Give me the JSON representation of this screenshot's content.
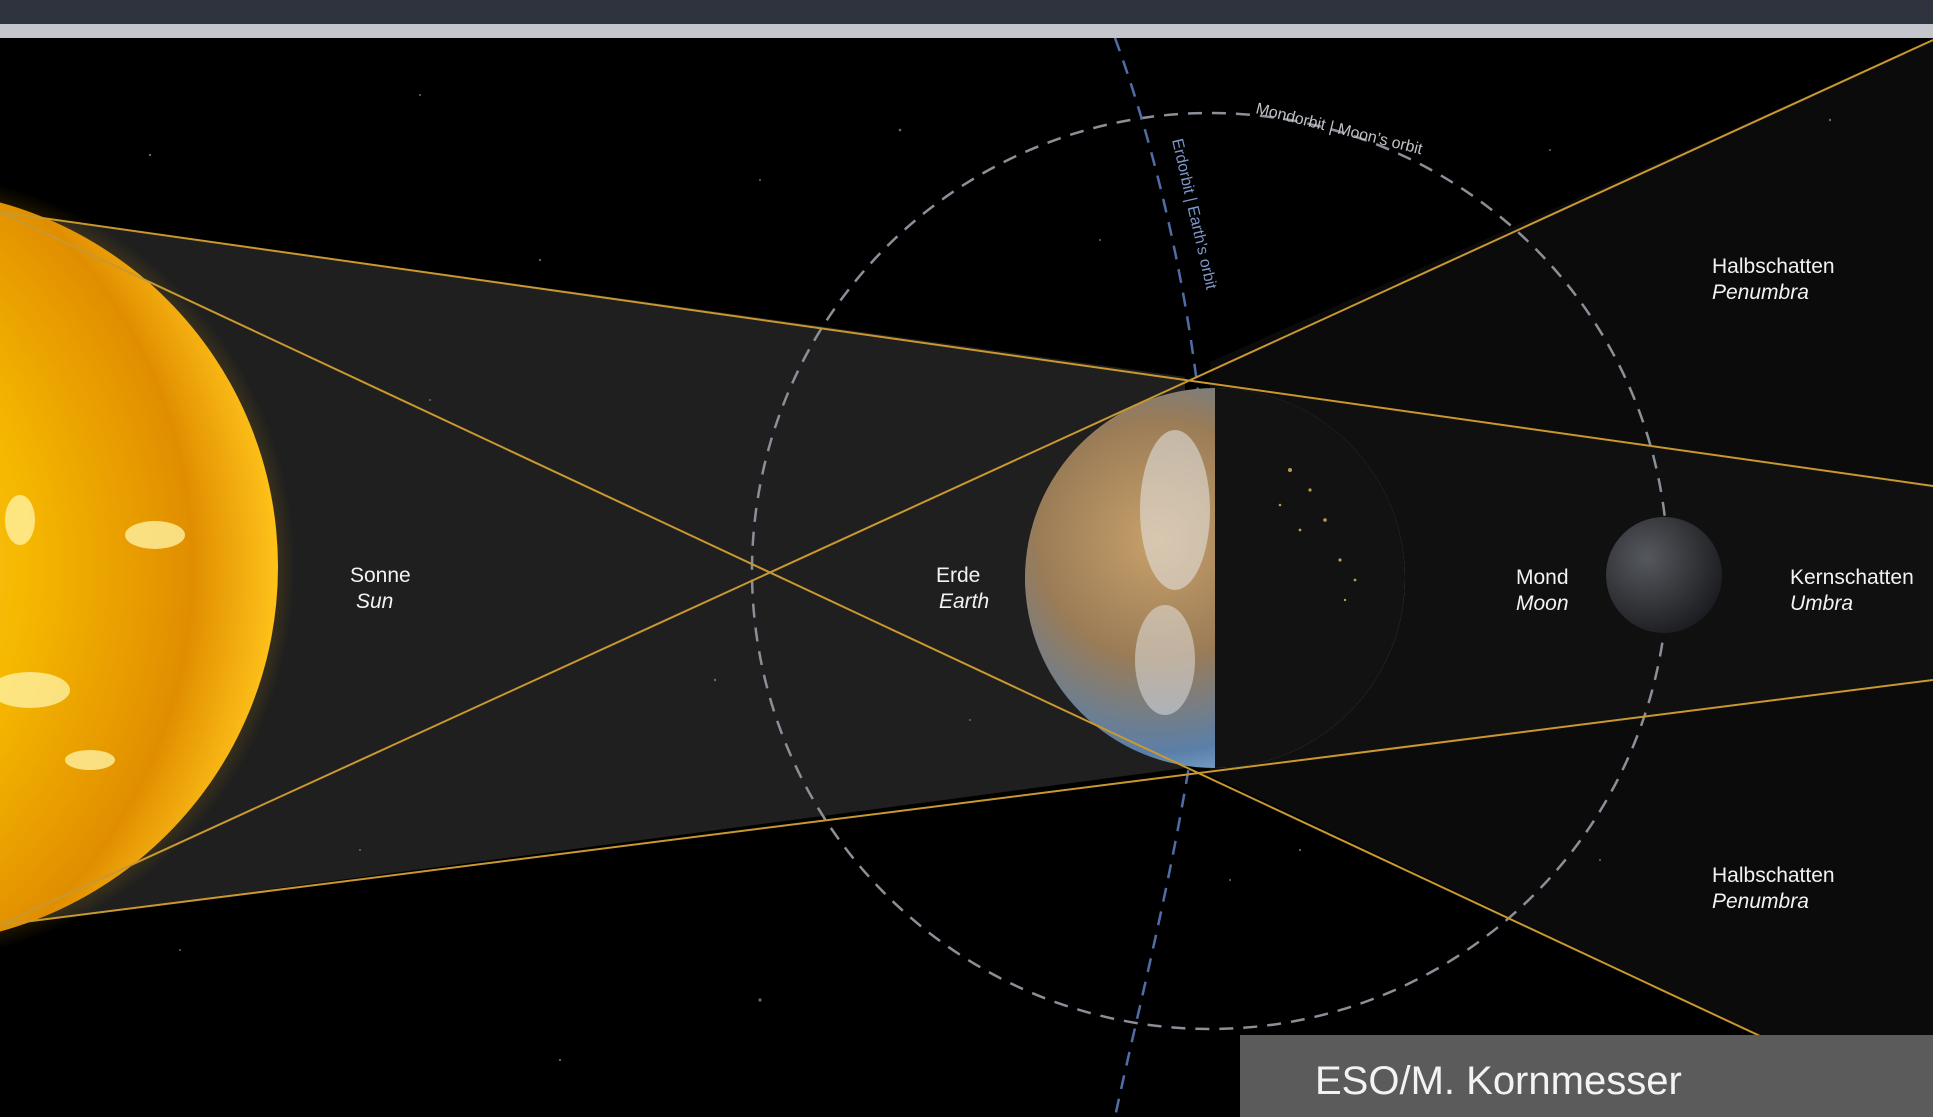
{
  "diagram": {
    "sun": {
      "name_de": "Sonne",
      "name_en": "Sun"
    },
    "earth": {
      "name_de": "Erde",
      "name_en": "Earth"
    },
    "moon": {
      "name_de": "Mond",
      "name_en": "Moon"
    },
    "umbra": {
      "name_de": "Kernschatten",
      "name_en": "Umbra"
    },
    "penumbra_top": {
      "name_de": "Halbschatten",
      "name_en": "Penumbra"
    },
    "penumbra_bottom": {
      "name_de": "Halbschatten",
      "name_en": "Penumbra"
    },
    "moon_orbit_label": "Mondorbit | Moon’s orbit",
    "earth_orbit_label": "Erdorbit | Earth’s orbit"
  },
  "credit": "ESO/M. Kornmesser",
  "colors": {
    "background": "#000000",
    "sun": "#f5b800",
    "rays": "#c9982f",
    "moon_orbit": "#8a8f98",
    "earth_orbit": "#4f6ea8",
    "ocean": "#3f6c9c",
    "land": "#b08a5a",
    "moon": "#3c3e42"
  }
}
